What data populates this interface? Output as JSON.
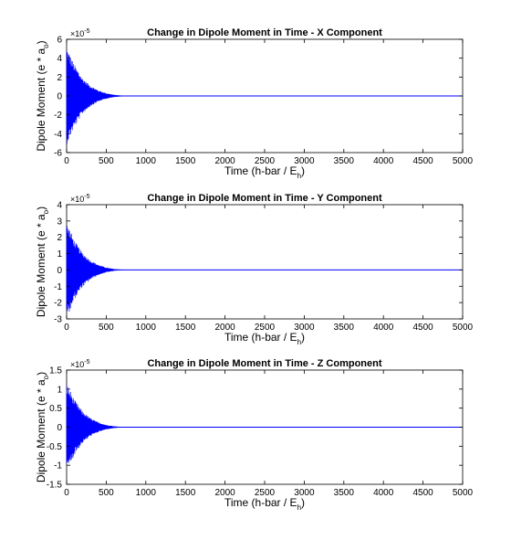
{
  "chart_data": [
    {
      "type": "line",
      "title": "Change in Dipole Moment in Time - X Component",
      "xlabel": "Time (h-bar / E",
      "xlabel_sub": "h",
      "xlabel_end": ")",
      "ylabel": "Dipole Moment (e * a",
      "ylabel_sub": "o",
      "ylabel_end": ")",
      "x_ticks": [
        "0",
        "500",
        "1000",
        "1500",
        "2000",
        "2500",
        "3000",
        "3500",
        "4000",
        "4500",
        "5000"
      ],
      "y_ticks": [
        "-6",
        "-4",
        "-2",
        "0",
        "2",
        "4",
        "6"
      ],
      "y_multiplier": "×10",
      "y_exponent": "-5",
      "xlim": [
        0,
        5000
      ],
      "ylim": [
        -6e-05,
        6e-05
      ],
      "series": [
        {
          "color": "#0000ff",
          "description": "damped oscillation around 0",
          "envelope_x": [
            0,
            50,
            100,
            200,
            300,
            400,
            500,
            600,
            700,
            800,
            5000
          ],
          "envelope_y": [
            5.2e-05,
            4.2e-05,
            3.3e-05,
            1.9e-05,
            1.1e-05,
            6e-06,
            3e-06,
            1.2e-06,
            5e-07,
            0.0,
            0.0
          ]
        }
      ],
      "grid": false
    },
    {
      "type": "line",
      "title": "Change in Dipole Moment in Time - Y Component",
      "xlabel": "Time (h-bar / E",
      "xlabel_sub": "h",
      "xlabel_end": ")",
      "ylabel": "Dipole Moment (e * a",
      "ylabel_sub": "o",
      "ylabel_end": ")",
      "x_ticks": [
        "0",
        "500",
        "1000",
        "1500",
        "2000",
        "2500",
        "3000",
        "3500",
        "4000",
        "4500",
        "5000"
      ],
      "y_ticks": [
        "-3",
        "-2",
        "-1",
        "0",
        "1",
        "2",
        "3",
        "4"
      ],
      "y_multiplier": "×10",
      "y_exponent": "-5",
      "xlim": [
        0,
        5000
      ],
      "ylim": [
        -3e-05,
        4e-05
      ],
      "series": [
        {
          "color": "#0000ff",
          "description": "damped oscillation around 0",
          "envelope_x": [
            0,
            50,
            100,
            200,
            300,
            400,
            500,
            600,
            700,
            800,
            5000
          ],
          "envelope_y": [
            2.9e-05,
            2.4e-05,
            1.8e-05,
            1.05e-05,
            6e-06,
            3.2e-06,
            1.5e-06,
            6e-07,
            2e-07,
            0.0,
            0.0
          ]
        }
      ],
      "grid": false
    },
    {
      "type": "line",
      "title": "Change in Dipole Moment in Time - Z Component",
      "xlabel": "Time (h-bar / E",
      "xlabel_sub": "h",
      "xlabel_end": ")",
      "ylabel": "Dipole Moment (e * a",
      "ylabel_sub": "o",
      "ylabel_end": ")",
      "x_ticks": [
        "0",
        "500",
        "1000",
        "1500",
        "2000",
        "2500",
        "3000",
        "3500",
        "4000",
        "4500",
        "5000"
      ],
      "y_ticks": [
        "-1.5",
        "-1",
        "-0.5",
        "0",
        "0.5",
        "1",
        "1.5"
      ],
      "y_multiplier": "×10",
      "y_exponent": "-5",
      "xlim": [
        0,
        5000
      ],
      "ylim": [
        -1.5e-05,
        1.5e-05
      ],
      "series": [
        {
          "color": "#0000ff",
          "description": "damped oscillation around 0",
          "envelope_x": [
            0,
            50,
            100,
            200,
            300,
            400,
            500,
            600,
            700,
            800,
            5000
          ],
          "envelope_y": [
            1.15e-05,
            9.5e-06,
            7.2e-06,
            4.2e-06,
            2.4e-06,
            1.3e-06,
            6e-07,
            2.5e-07,
            1e-07,
            0.0,
            0.0
          ]
        }
      ],
      "grid": false
    }
  ]
}
